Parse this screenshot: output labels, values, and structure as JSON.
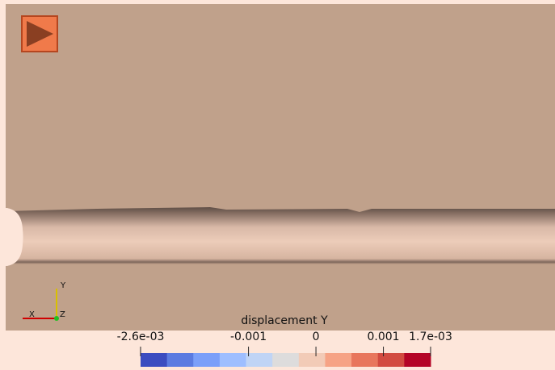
{
  "colorbar": {
    "title": "displacement Y",
    "range": [
      -0.0026,
      0.0017
    ],
    "ticks": [
      {
        "value": -0.0026,
        "label": "-2.6e-03"
      },
      -0.001,
      0,
      0.001,
      {
        "value": 0.0017,
        "label": "1.7e-03"
      }
    ],
    "colors": [
      "#3b4cc0",
      "#5b7be1",
      "#7b9ff9",
      "#9ebeff",
      "#c0d4f5",
      "#dddcdc",
      "#f2cbb7",
      "#f6a385",
      "#e8765c",
      "#d24b40",
      "#b40426"
    ]
  },
  "axes_triad": {
    "x": "X",
    "y": "Y",
    "z": "Z"
  }
}
